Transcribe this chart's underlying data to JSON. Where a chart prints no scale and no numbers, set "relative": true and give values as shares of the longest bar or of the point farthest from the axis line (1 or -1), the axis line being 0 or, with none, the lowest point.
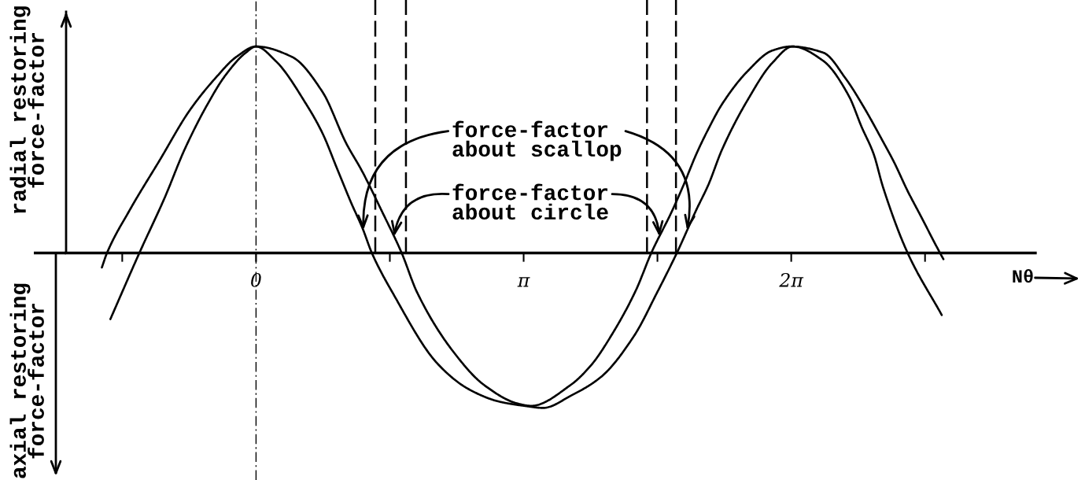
{
  "chart_data": {
    "type": "line",
    "relative": true,
    "ylabel": "radial restoring\nforce-factor",
    "xlabel": "Nθ",
    "xlim": [
      -2.23,
      9.15
    ],
    "xticks": [
      {
        "value": -1.5708,
        "label": null
      },
      {
        "value": 0,
        "label": "0"
      },
      {
        "value": 1.5708,
        "label": null
      },
      {
        "value": 3.1416,
        "label": "π"
      },
      {
        "value": 4.7124,
        "label": null
      },
      {
        "value": 6.2832,
        "label": "2π"
      },
      {
        "value": 7.854,
        "label": null
      }
    ],
    "series": [
      {
        "color": "#000000",
        "x": [
          -1.81,
          -1.75,
          -1.48,
          -1.13,
          -0.78,
          -0.47,
          -0.23,
          0,
          0.42,
          0.78,
          1.06,
          1.24,
          1.48,
          1.71,
          1.89,
          2.32,
          2.68,
          3.08,
          3.23,
          3.69,
          3.94,
          4.17,
          4.46,
          4.64,
          4.88,
          5.02,
          5.17,
          5.31,
          5.47,
          5.77,
          6.06,
          6.28,
          6.66,
          6.93,
          7.13,
          7.36,
          7.49,
          7.65,
          7.79,
          8.03,
          8.07
        ],
        "values": [
          -0.07,
          0,
          0.21,
          0.45,
          0.69,
          0.85,
          0.95,
          1.0,
          0.95,
          0.78,
          0.53,
          0.4,
          0.2,
          0,
          -0.19,
          -0.48,
          -0.64,
          -0.73,
          -0.74,
          -0.64,
          -0.54,
          -0.4,
          -0.18,
          0,
          0.2,
          0.33,
          0.48,
          0.6,
          0.72,
          0.88,
          0.98,
          1.0,
          0.97,
          0.84,
          0.71,
          0.54,
          0.44,
          0.3,
          0.19,
          0,
          -0.03
        ]
      },
      {
        "color": "#000000",
        "x": [
          -1.71,
          -1.37,
          -1.07,
          -0.84,
          -0.57,
          -0.36,
          -0.12,
          0,
          0.23,
          0.59,
          0.78,
          0.95,
          1.12,
          1.25,
          1.36,
          1.6,
          2.14,
          2.5,
          2.86,
          3.15,
          3.37,
          3.7,
          4.05,
          4.44,
          4.71,
          4.94,
          5.17,
          5.31,
          5.47,
          5.77,
          6.06,
          6.3,
          6.66,
          6.96,
          7.11,
          7.25,
          7.36,
          7.65,
          8.05
        ],
        "values": [
          -0.32,
          0,
          0.27,
          0.5,
          0.72,
          0.86,
          0.97,
          1.0,
          0.93,
          0.72,
          0.58,
          0.41,
          0.24,
          0.12,
          0,
          -0.19,
          -0.54,
          -0.66,
          -0.72,
          -0.74,
          -0.75,
          -0.69,
          -0.6,
          -0.4,
          -0.19,
          0,
          0.21,
          0.33,
          0.5,
          0.74,
          0.92,
          1.0,
          0.93,
          0.76,
          0.61,
          0.48,
          0.32,
          0,
          -0.3
        ]
      }
    ],
    "ref_lines": [
      {
        "axis": "x",
        "value": 0,
        "line_style": "dashdot"
      },
      {
        "axis": "x",
        "value": 1.4,
        "line_style": "dashed"
      },
      {
        "axis": "x",
        "value": 1.76,
        "line_style": "dashed"
      },
      {
        "axis": "x",
        "value": 4.59,
        "line_style": "dashed"
      },
      {
        "axis": "x",
        "value": 4.93,
        "line_style": "dashed"
      }
    ],
    "annotations": [
      "axial restoring\nforce-factor",
      {
        "text": "force-factor\nabout scallop",
        "x": 1.26,
        "y": 0.11
      },
      {
        "text": "force-factor\nabout circle",
        "x": 1.62,
        "y": 0.08
      }
    ],
    "grid": false,
    "marker": "none",
    "line_style": "solid"
  }
}
